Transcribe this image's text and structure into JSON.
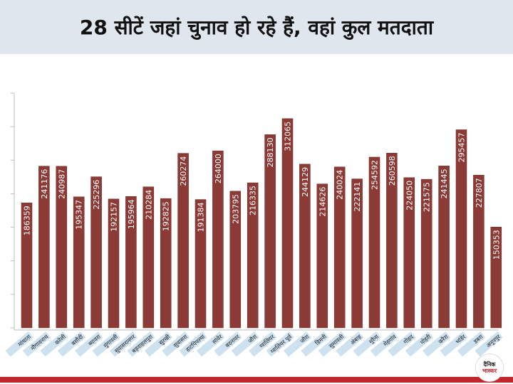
{
  "title": "28 सीटें जहां चुनाव हो रहे हैं, वहां कुल मतदाता",
  "logo": {
    "line1": "दैनिक",
    "line2": "भास्कर"
  },
  "colors": {
    "bar": "#8b3a35",
    "bar_stroke": "#6e2925",
    "label_tag": "#cde1ef",
    "header_bg": "#dfe6ee",
    "accent": "#c0272d"
  },
  "chart_data": {
    "type": "bar",
    "title": "28 सीटें जहां चुनाव हो रहे हैं, वहां कुल मतदाता",
    "xlabel": "",
    "ylabel": "",
    "ylim": [
      0,
      350000
    ],
    "grid": false,
    "categories": [
      "मांधाता",
      "नौगावनाथ",
      "करेली",
      "बसौदी",
      "ब्यावरा",
      "मुंगावली",
      "सुवासरानगर",
      "बड़वाहलपुरा",
      "सुरखी",
      "सुवासरा",
      "हाटपिपल्या",
      "सांवेर",
      "बदनावर",
      "जौरा",
      "ग्वालियर",
      "ग्वालियर पूर्व",
      "जौरा",
      "डिमनी",
      "सुमावली",
      "अंबाह",
      "मुरैना",
      "मेहगांव",
      "गोहद",
      "पोहरी",
      "करैरा",
      "भांडेर",
      "डबरा",
      "अनूपपुर"
    ],
    "values": [
      186359,
      241176,
      240987,
      195347,
      225296,
      192157,
      195964,
      210284,
      192825,
      260274,
      191384,
      264000,
      203795,
      216335,
      288130,
      312065,
      244129,
      214626,
      240024,
      222141,
      254592,
      260598,
      224050,
      221575,
      241445,
      295457,
      227807,
      150353
    ],
    "value_labels": [
      "186359",
      "241176",
      "240987",
      "195347",
      "225296",
      "192157",
      "195964",
      "210284",
      "192825",
      "260274",
      "191384",
      "264000",
      "203795",
      "216335",
      "288130",
      "312065",
      "244129",
      "214626",
      "240024",
      "222141",
      "254592",
      "260598",
      "224050",
      "221575",
      "241445",
      "295457",
      "227807",
      "150353"
    ]
  }
}
